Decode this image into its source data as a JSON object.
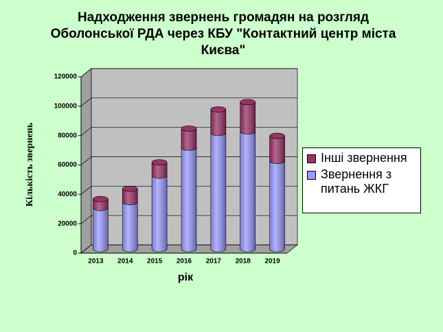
{
  "chart_data": {
    "type": "bar3d-stacked",
    "title": "Надходження звернень громадян  на розгляд Оболонської РДА через КБУ \"Контактний центр  міста Києва\"",
    "x_label": "рік",
    "y_label": "Кількість звернень",
    "categories": [
      "2013",
      "2014",
      "2015",
      "2016",
      "2017",
      "2018",
      "2019"
    ],
    "series": [
      {
        "name": "Звернення з питань ЖКГ",
        "color": "#9999ff",
        "values": [
          28000,
          32000,
          50000,
          69000,
          79000,
          80000,
          60000
        ]
      },
      {
        "name": "Інші звернення",
        "color": "#993366",
        "values": [
          6000,
          9000,
          9000,
          13000,
          16000,
          20000,
          17000
        ]
      }
    ],
    "ylim": [
      0,
      120000
    ],
    "yticks": [
      0,
      20000,
      40000,
      60000,
      80000,
      100000,
      120000
    ],
    "grid": true
  }
}
